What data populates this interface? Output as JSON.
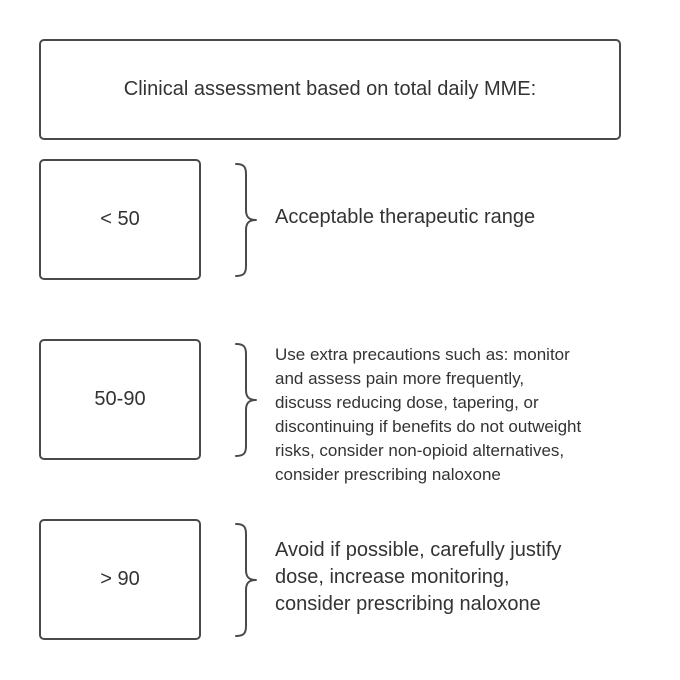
{
  "header": {
    "title": "Clinical assessment based on total daily MME:"
  },
  "rows": [
    {
      "range": "< 50",
      "description": "Acceptable therapeutic range"
    },
    {
      "range": "50-90",
      "description_lines": [
        "Use extra precautions such as: monitor",
        "and assess pain more frequently,",
        "discuss reducing dose, tapering, or",
        "discontinuing if benefits do not outweight",
        "risks, consider non-opioid alternatives,",
        "consider prescribing naloxone"
      ]
    },
    {
      "range": "> 90",
      "description_lines": [
        "Avoid if possible, carefully justify",
        "dose, increase monitoring,",
        "consider prescribing naloxone"
      ]
    }
  ],
  "colors": {
    "stroke": "#4a4a4a",
    "text": "#333333",
    "background": "#ffffff"
  }
}
